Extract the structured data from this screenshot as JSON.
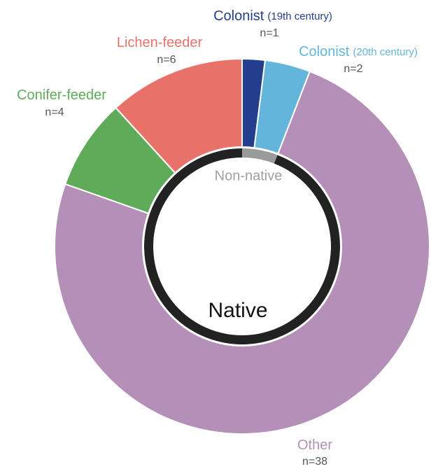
{
  "chart_data": {
    "type": "donut",
    "categories": [
      "Colonist",
      "Colonist",
      "Other",
      "Conifer-feeder",
      "Lichen-feeder"
    ],
    "qualifiers": [
      "(19th century)",
      "(20th century)",
      null,
      null,
      null
    ],
    "values": [
      1,
      2,
      38,
      4,
      6
    ],
    "value_labels": [
      "n=1",
      "n=2",
      "n=38",
      "n=4",
      "n=6"
    ],
    "colors": [
      "#243e8e",
      "#63b5dc",
      "#b48fb7",
      "#5eab59",
      "#e8726a"
    ],
    "inner": {
      "categories": [
        "Non-native",
        "Native"
      ],
      "values": [
        3,
        48
      ],
      "colors": [
        "#9a9a9a",
        "#222222"
      ]
    }
  }
}
